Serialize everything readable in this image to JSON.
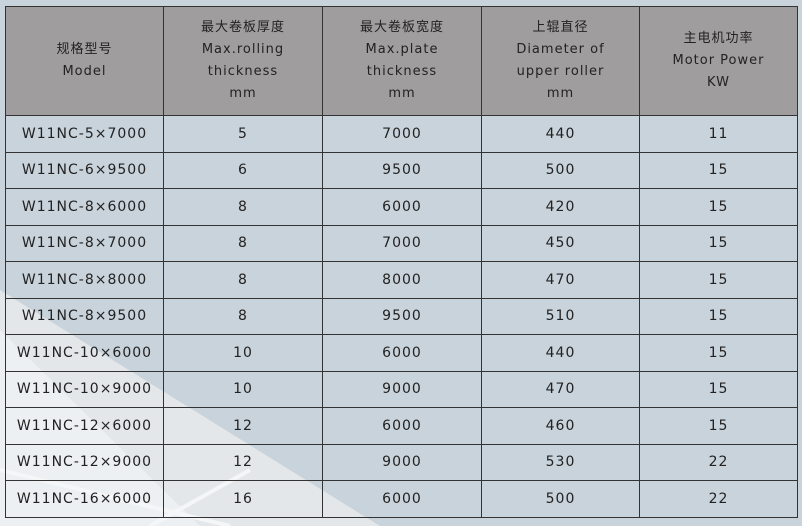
{
  "headers": [
    {
      "lines": [
        "规格型号",
        "Model"
      ]
    },
    {
      "lines": [
        "最大卷板厚度",
        "Max.rolling",
        "thickness",
        "mm"
      ]
    },
    {
      "lines": [
        "最大卷板宽度",
        "Max.plate",
        "thickness",
        "mm"
      ]
    },
    {
      "lines": [
        "上辊直径",
        "Diameter of",
        "upper roller",
        "mm"
      ]
    },
    {
      "lines": [
        "主电机功率",
        "Motor Power",
        "KW"
      ]
    }
  ],
  "rows": [
    [
      "W11NC-5×7000",
      "5",
      "7000",
      "440",
      "11"
    ],
    [
      "W11NC-6×9500",
      "6",
      "9500",
      "500",
      "15"
    ],
    [
      "W11NC-8×6000",
      "8",
      "6000",
      "420",
      "15"
    ],
    [
      "W11NC-8×7000",
      "8",
      "7000",
      "450",
      "15"
    ],
    [
      "W11NC-8×8000",
      "8",
      "8000",
      "470",
      "15"
    ],
    [
      "W11NC-8×9500",
      "8",
      "9500",
      "510",
      "15"
    ],
    [
      "W11NC-10×6000",
      "10",
      "6000",
      "440",
      "15"
    ],
    [
      "W11NC-10×9000",
      "10",
      "9000",
      "470",
      "15"
    ],
    [
      "W11NC-12×6000",
      "12",
      "6000",
      "460",
      "15"
    ],
    [
      "W11NC-12×9000",
      "12",
      "9000",
      "530",
      "22"
    ],
    [
      "W11NC-16×6000",
      "16",
      "6000",
      "500",
      "22"
    ]
  ],
  "colors": {
    "background": "#c9d3db",
    "header": "#a09d9e",
    "highlight": "#e6eaed"
  }
}
